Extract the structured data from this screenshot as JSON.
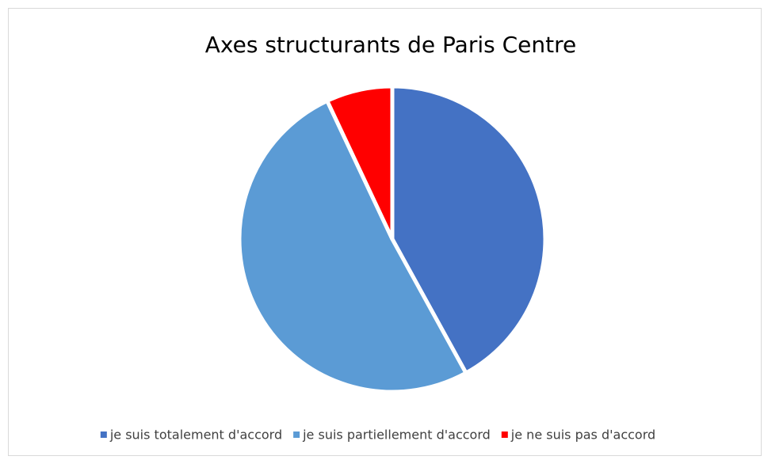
{
  "chart_data": {
    "type": "pie",
    "title": "Axes structurants de Paris Centre",
    "categories": [
      "je suis totalement d'accord",
      "je suis partiellement d'accord",
      "je ne suis pas d'accord"
    ],
    "values": [
      42,
      51,
      7
    ],
    "colors": [
      "#4472c4",
      "#5b9bd5",
      "#ff0000"
    ],
    "legend": "bottom"
  }
}
